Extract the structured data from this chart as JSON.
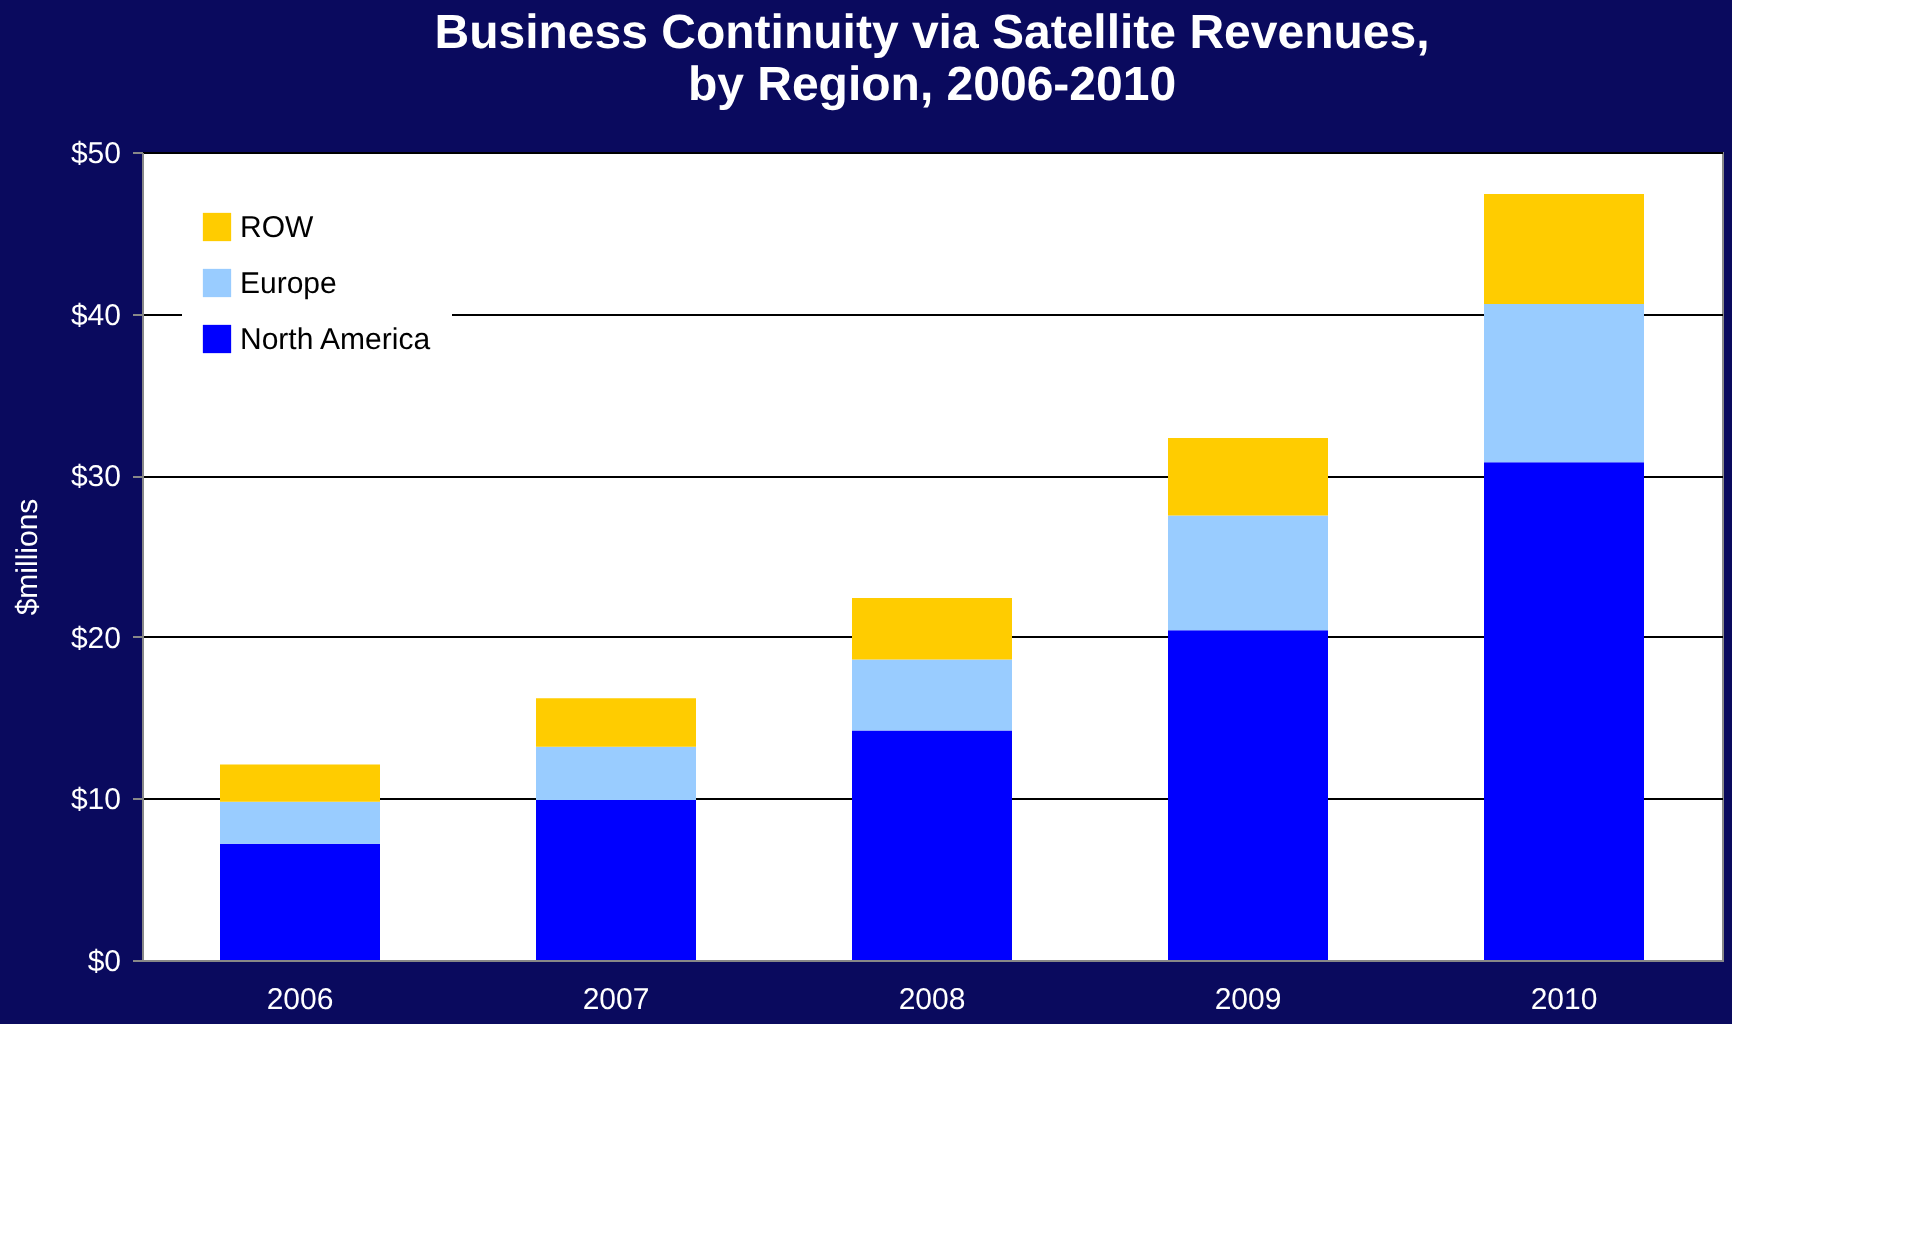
{
  "chart_data": {
    "type": "bar",
    "title": "Business Continuity via Satellite Revenues,\nby Region, 2006-2010",
    "ylabel": "$millions",
    "categories": [
      "2006",
      "2007",
      "2008",
      "2009",
      "2010"
    ],
    "stacked": true,
    "series": [
      {
        "name": "North America",
        "color": "#0000ff",
        "values": [
          7.2,
          9.9,
          14.2,
          20.4,
          30.8
        ]
      },
      {
        "name": "Europe",
        "color": "#99ccff",
        "values": [
          2.6,
          3.3,
          4.4,
          7.1,
          9.8
        ]
      },
      {
        "name": "ROW",
        "color": "#ffcc00",
        "values": [
          2.3,
          3.0,
          3.8,
          4.8,
          6.8
        ]
      }
    ],
    "ylim": [
      0,
      50
    ],
    "yticks": [
      {
        "value": 0,
        "label": "$0"
      },
      {
        "value": 10,
        "label": "$10"
      },
      {
        "value": 20,
        "label": "$20"
      },
      {
        "value": 30,
        "label": "$30"
      },
      {
        "value": 40,
        "label": "$40"
      },
      {
        "value": 50,
        "label": "$50"
      }
    ],
    "grid": "y",
    "legend": "top left"
  }
}
